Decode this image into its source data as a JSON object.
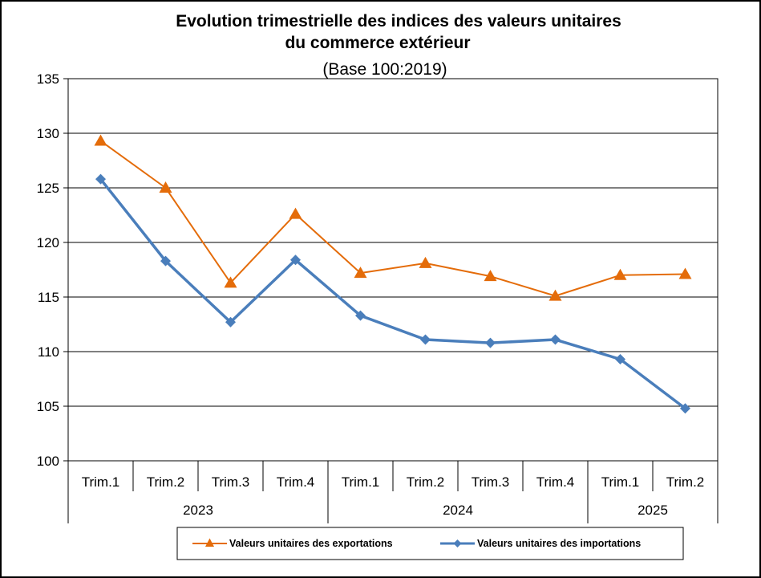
{
  "chart_data": {
    "type": "line",
    "title_line1": "Evolution trimestrielle des indices des valeurs unitaires",
    "title_line2": "du commerce extérieur",
    "subtitle": "(Base  100:2019)",
    "categories": [
      "Trim.1",
      "Trim.2",
      "Trim.3",
      "Trim.4",
      "Trim.1",
      "Trim.2",
      "Trim.3",
      "Trim.4",
      "Trim.1",
      "Trim.2"
    ],
    "groups": [
      {
        "label": "2023",
        "count": 4
      },
      {
        "label": "2024",
        "count": 4
      },
      {
        "label": "2025",
        "count": 2
      }
    ],
    "ylim": [
      100,
      135
    ],
    "yticks": [
      100,
      105,
      110,
      115,
      120,
      125,
      130,
      135
    ],
    "grid": true,
    "legend_position": "bottom",
    "series": [
      {
        "name": "Valeurs unitaires des exportations",
        "color": "#E46C0A",
        "marker": "triangle",
        "values": [
          129.3,
          125.0,
          116.3,
          122.6,
          117.2,
          118.1,
          116.9,
          115.1,
          117.0,
          117.1
        ]
      },
      {
        "name": "Valeurs unitaires des importations",
        "color": "#4A7EBB",
        "marker": "diamond",
        "values": [
          125.8,
          118.3,
          112.7,
          118.4,
          113.3,
          111.1,
          110.8,
          111.1,
          109.3,
          104.8
        ]
      }
    ]
  }
}
